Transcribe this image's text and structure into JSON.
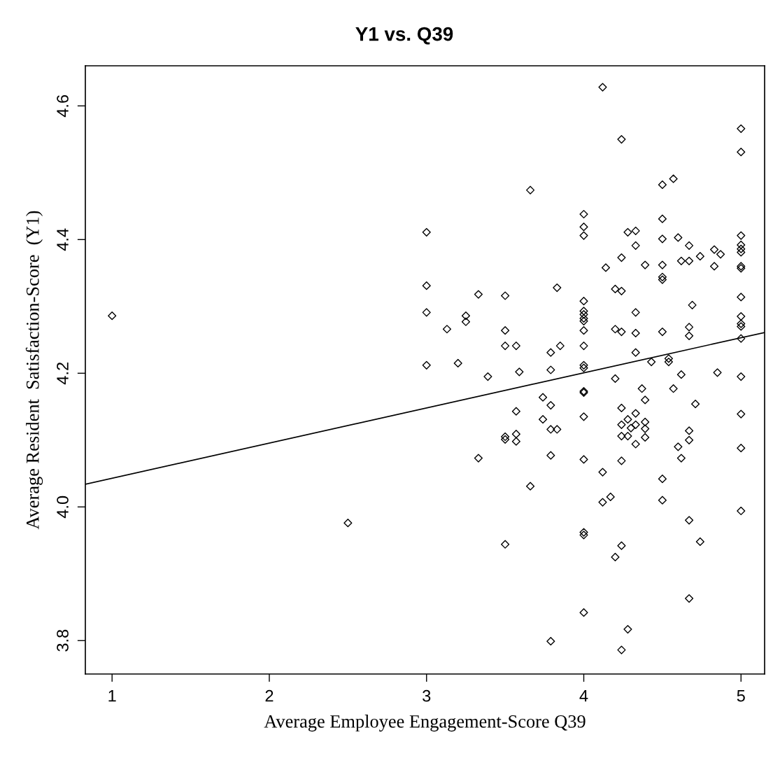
{
  "chart_data": {
    "type": "scatter",
    "title": "Y1 vs. Q39",
    "xlabel": "Average Employee Engagement-Score Q39",
    "ylabel": "Average Resident  Satisfaction-Score  (Y1)",
    "xlim": [
      0.83,
      5.15
    ],
    "ylim": [
      3.75,
      4.66
    ],
    "xticks": [
      1,
      2,
      3,
      4,
      5
    ],
    "yticks": [
      3.8,
      {
        "value": 4,
        "label": "4.0"
      },
      4.2,
      4.4,
      4.6
    ],
    "grid": false,
    "legend": false,
    "series": [
      {
        "marker": "diamond",
        "color": "#000000",
        "x": [
          1.0,
          2.5,
          3.66,
          3.0,
          3.0,
          3.33,
          3.5,
          3.83,
          3.0,
          3.25,
          3.25,
          3.13,
          3.5,
          3.5,
          3.57,
          3.79,
          3.85,
          3.0,
          3.2,
          3.79,
          3.59,
          3.39,
          3.74,
          3.79,
          3.57,
          3.74,
          3.79,
          3.83,
          3.5,
          3.5,
          3.57,
          3.57,
          3.33,
          3.79,
          3.66,
          3.5,
          3.79,
          4.12,
          5.0,
          4.24,
          5.0,
          4.57,
          4.5,
          4.0,
          4.0,
          4.0,
          4.5,
          4.28,
          4.33,
          5.0,
          4.5,
          4.6,
          4.33,
          4.67,
          5.0,
          5.0,
          5.0,
          4.83,
          4.87,
          4.24,
          4.74,
          4.62,
          4.67,
          4.14,
          4.39,
          4.5,
          4.83,
          5.0,
          5.0,
          4.5,
          4.5,
          4.2,
          4.24,
          5.0,
          4.0,
          4.33,
          4.69,
          4.0,
          4.0,
          4.0,
          4.0,
          5.0,
          5.0,
          5.0,
          4.2,
          4.24,
          4.33,
          4.5,
          4.67,
          4.67,
          4.0,
          5.0,
          4.0,
          4.33,
          4.43,
          4.54,
          4.54,
          4.0,
          4.0,
          4.2,
          4.62,
          4.85,
          5.0,
          4.0,
          4.0,
          4.37,
          4.57,
          4.39,
          4.71,
          4.24,
          4.33,
          4.0,
          5.0,
          4.28,
          4.24,
          4.33,
          4.39,
          4.3,
          4.39,
          4.24,
          4.28,
          4.39,
          4.33,
          4.67,
          4.67,
          4.6,
          4.62,
          5.0,
          4.0,
          4.24,
          4.12,
          4.5,
          4.12,
          4.17,
          4.5,
          5.0,
          4.67,
          4.74,
          4.0,
          4.0,
          4.24,
          4.2,
          4.67,
          4.0,
          4.28,
          4.24
        ],
        "values": [
          4.286,
          3.976,
          4.474,
          4.411,
          4.331,
          4.318,
          4.316,
          4.328,
          4.291,
          4.286,
          4.277,
          4.266,
          4.264,
          4.241,
          4.241,
          4.231,
          4.241,
          4.212,
          4.215,
          4.205,
          4.202,
          4.195,
          4.164,
          4.152,
          4.143,
          4.131,
          4.116,
          4.116,
          4.105,
          4.101,
          4.109,
          4.098,
          4.073,
          4.077,
          4.031,
          3.944,
          3.799,
          4.628,
          4.566,
          4.55,
          4.531,
          4.491,
          4.482,
          4.438,
          4.419,
          4.406,
          4.431,
          4.411,
          4.413,
          4.406,
          4.401,
          4.403,
          4.391,
          4.391,
          4.392,
          4.386,
          4.381,
          4.385,
          4.378,
          4.373,
          4.375,
          4.368,
          4.368,
          4.358,
          4.362,
          4.362,
          4.36,
          4.36,
          4.357,
          4.344,
          4.34,
          4.326,
          4.323,
          4.314,
          4.308,
          4.291,
          4.302,
          4.293,
          4.288,
          4.282,
          4.278,
          4.285,
          4.274,
          4.27,
          4.266,
          4.262,
          4.26,
          4.262,
          4.269,
          4.256,
          4.264,
          4.252,
          4.241,
          4.231,
          4.217,
          4.222,
          4.217,
          4.212,
          4.208,
          4.192,
          4.198,
          4.201,
          4.195,
          4.173,
          4.171,
          4.177,
          4.177,
          4.16,
          4.154,
          4.148,
          4.14,
          4.135,
          4.139,
          4.131,
          4.123,
          4.123,
          4.127,
          4.118,
          4.117,
          4.106,
          4.106,
          4.104,
          4.094,
          4.114,
          4.1,
          4.09,
          4.073,
          4.088,
          4.071,
          4.069,
          4.052,
          4.042,
          4.007,
          4.015,
          4.01,
          3.994,
          3.98,
          3.948,
          3.962,
          3.958,
          3.942,
          3.925,
          3.863,
          3.842,
          3.817,
          3.786
        ]
      },
      {
        "type": "line",
        "color": "#000000",
        "line_style": "solid",
        "x": [
          0.83,
          5.15
        ],
        "values": [
          4.034,
          4.261
        ]
      }
    ]
  }
}
